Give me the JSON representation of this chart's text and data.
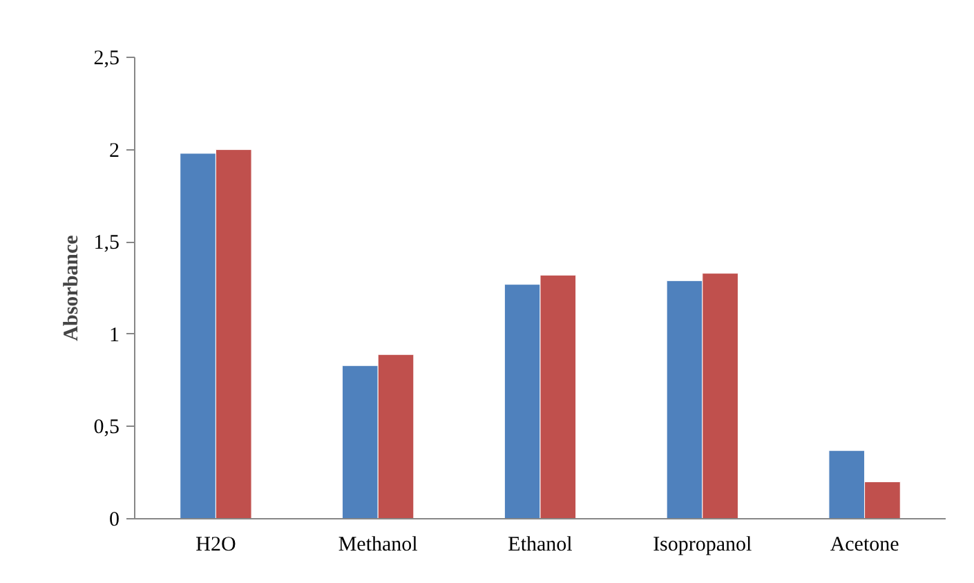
{
  "chart_data": {
    "type": "bar",
    "ylabel": "Absorbance",
    "categories": [
      "H2O",
      "Methanol",
      "Ethanol",
      "Isopropanol",
      "Acetone"
    ],
    "series": [
      {
        "color": "#4f81bd",
        "values": [
          1.98,
          0.83,
          1.27,
          1.29,
          0.37
        ]
      },
      {
        "color": "#c0504d",
        "values": [
          2.0,
          0.89,
          1.32,
          1.33,
          0.2
        ]
      }
    ],
    "ylim": [
      0,
      2.5
    ],
    "yticks": [
      0,
      {
        "value": 0.5,
        "label": "0,5"
      },
      1,
      {
        "value": 1.5,
        "label": "1,5"
      },
      2,
      {
        "value": 2.5,
        "label": "2,5"
      }
    ],
    "grid": false
  }
}
